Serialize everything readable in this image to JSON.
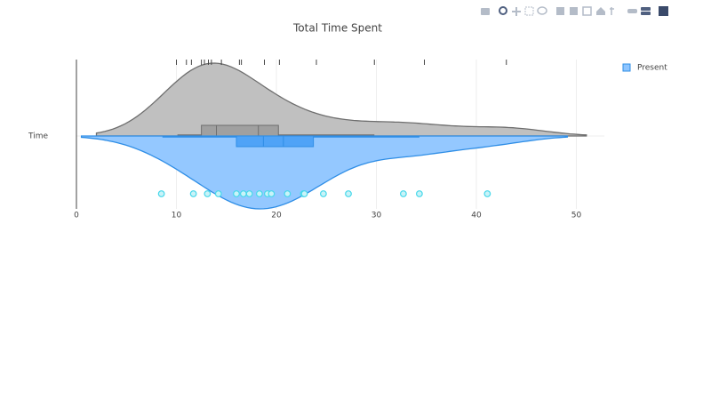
{
  "chart_data": {
    "type": "violin",
    "title": "Total Time Spent",
    "categories": [
      "Time"
    ],
    "xlim": [
      0,
      52.8
    ],
    "xticks": [
      0,
      10,
      20,
      30,
      40,
      50
    ],
    "grid": true,
    "legend_position": "top-right",
    "series": [
      {
        "side": "positive",
        "color": "#bdbdbd",
        "line_color": "#6e6e6e",
        "points": "rug",
        "values": [
          10,
          11,
          11.5,
          12.5,
          12.8,
          13.2,
          13.5,
          14.5,
          16.3,
          16.5,
          18.8,
          20.3,
          24,
          29.8,
          34.8,
          43
        ],
        "box": {
          "lower": 10.1,
          "q1": 12.5,
          "median": 14,
          "mean": 18.2,
          "q3": 20.2,
          "upper": 29.8
        }
      },
      {
        "name": "Present",
        "side": "negative",
        "color": "#8ec5ff",
        "line_color": "#2f8ee6",
        "points": "all",
        "point_color": "#47d8ea",
        "values": [
          8.5,
          11.7,
          13.1,
          14.2,
          16.0,
          16.7,
          17.3,
          18.3,
          19.1,
          19.5,
          21.1,
          22.7,
          22.8,
          24.7,
          27.2,
          32.7,
          34.3,
          41.1
        ],
        "box": {
          "lower": 8.6,
          "q1": 16.0,
          "median": 18.7,
          "mean": 20.7,
          "q3": 23.7,
          "upper": 34.3
        }
      }
    ]
  }
}
